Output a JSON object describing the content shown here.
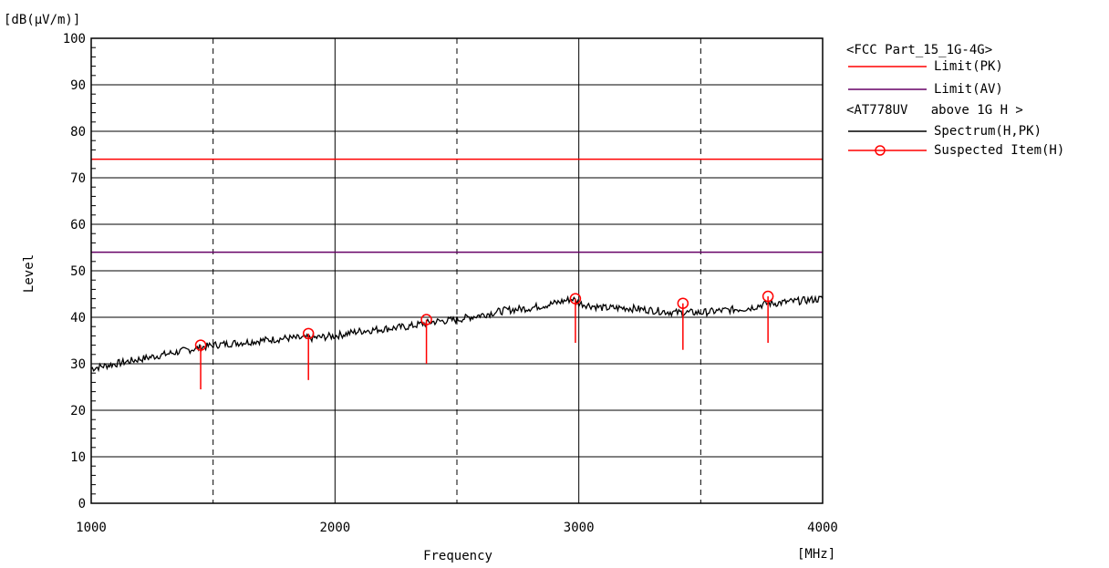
{
  "chart_data": {
    "type": "line",
    "title": "",
    "unit_top": "[dB(μV/m)]",
    "unit_right": "[MHz]",
    "xlabel": "Frequency",
    "ylabel": "Level",
    "xlim": [
      1000,
      4000
    ],
    "ylim": [
      0,
      100
    ],
    "xticks": [
      1000,
      2000,
      3000,
      4000
    ],
    "xtick_labels": [
      "1000",
      "2000",
      "3000",
      "4000"
    ],
    "yticks": [
      0,
      10,
      20,
      30,
      40,
      50,
      60,
      70,
      80,
      90,
      100
    ],
    "ytick_labels": [
      "0",
      "10",
      "20",
      "30",
      "40",
      "50",
      "60",
      "70",
      "80",
      "90",
      "100"
    ],
    "grid": true,
    "legend_position": "right",
    "legend": {
      "group1": "<FCC Part_15_1G-4G>",
      "entries1": [
        {
          "label": "Limit(PK)",
          "color": "#ff0000",
          "marker": "line"
        },
        {
          "label": "Limit(AV)",
          "color": "#660066",
          "marker": "line"
        }
      ],
      "group2": "<AT778UV   above 1G H >",
      "entries2": [
        {
          "label": "Spectrum(H,PK)",
          "color": "#000000",
          "marker": "line"
        },
        {
          "label": "Suspected Item(H)",
          "color": "#ff0000",
          "marker": "circle-line"
        }
      ]
    },
    "series": [
      {
        "name": "Limit(PK)",
        "color": "#ff0000",
        "x": [
          1000,
          4000
        ],
        "y": [
          74,
          74
        ]
      },
      {
        "name": "Limit(AV)",
        "color": "#660066",
        "x": [
          1000,
          4000
        ],
        "y": [
          54,
          54
        ]
      },
      {
        "name": "Spectrum(H,PK)",
        "color": "#000000",
        "x": [
          1000,
          1100,
          1200,
          1300,
          1400,
          1450,
          1500,
          1600,
          1700,
          1800,
          1900,
          2000,
          2100,
          2200,
          2300,
          2400,
          2500,
          2600,
          2700,
          2800,
          2900,
          2975,
          3000,
          3100,
          3200,
          3300,
          3400,
          3500,
          3600,
          3700,
          3775,
          3800,
          3900,
          4000
        ],
        "y": [
          29,
          30,
          31,
          32,
          33,
          33.5,
          34,
          34.5,
          35,
          35.5,
          35.5,
          36,
          37,
          37.5,
          38,
          39,
          39.5,
          40.5,
          41.5,
          42,
          43,
          44,
          43,
          42,
          42,
          41.5,
          41,
          41,
          41.5,
          42,
          43,
          43,
          43.5,
          44
        ]
      },
      {
        "name": "Suspected Item(H)",
        "color": "#ff0000",
        "x": [
          1449,
          1891,
          2375,
          2986,
          3427,
          3776
        ],
        "y_peak": [
          34,
          36.5,
          39.5,
          44,
          43,
          44.5
        ],
        "y_low": [
          24.5,
          26.5,
          30,
          34.5,
          33,
          34.5
        ]
      }
    ]
  }
}
